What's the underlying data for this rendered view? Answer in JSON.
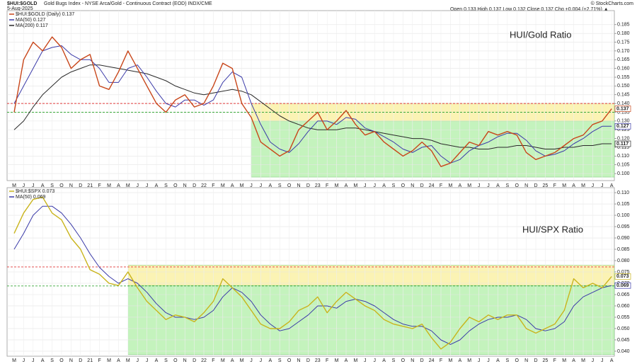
{
  "header": {
    "symbol": "$HUI:$GOLD",
    "description": "Gold Bugs Index - NYSE Arca/Gold - Continuous Contract (EOD) INDX/CME",
    "date": "5-Aug-2025",
    "quote": "Open 0.133  High 0.137  Low 0.132  Close 0.137  Chg +0.004 (+2.71%) ▲",
    "credit": "© StockCharts.com"
  },
  "chart_data": [
    {
      "type": "line",
      "annotation": "HUI/Gold Ratio",
      "categories": [
        "M",
        "J",
        "J",
        "A",
        "S",
        "O",
        "N",
        "D",
        "21",
        "F",
        "M",
        "A",
        "M",
        "J",
        "J",
        "A",
        "S",
        "O",
        "N",
        "D",
        "22",
        "F",
        "M",
        "A",
        "M",
        "J",
        "J",
        "A",
        "S",
        "O",
        "N",
        "D",
        "23",
        "F",
        "M",
        "A",
        "M",
        "J",
        "J",
        "A",
        "S",
        "O",
        "N",
        "D",
        "24",
        "F",
        "M",
        "A",
        "M",
        "J",
        "J",
        "A",
        "S",
        "O",
        "N",
        "D",
        "25",
        "F",
        "M",
        "A",
        "M",
        "J",
        "J",
        "A"
      ],
      "ylim": [
        0.096,
        0.193
      ],
      "yticks": [
        {
          "value": 0.1,
          "label": "0.100"
        },
        {
          "value": 0.105,
          "label": "0.105"
        },
        {
          "value": 0.11,
          "label": "0.110"
        },
        {
          "value": 0.115,
          "label": "0.115"
        },
        {
          "value": 0.12,
          "label": "0.120"
        },
        {
          "value": 0.125,
          "label": "0.125"
        },
        {
          "value": 0.13,
          "label": "0.130"
        },
        {
          "value": 0.135,
          "label": "0.135"
        },
        {
          "value": 0.14,
          "label": "0.140"
        },
        {
          "value": 0.145,
          "label": "0.145"
        },
        {
          "value": 0.15,
          "label": "0.150"
        },
        {
          "value": 0.155,
          "label": "0.155"
        },
        {
          "value": 0.16,
          "label": "0.160"
        },
        {
          "value": 0.165,
          "label": "0.165"
        },
        {
          "value": 0.17,
          "label": "0.170"
        },
        {
          "value": 0.175,
          "label": "0.175"
        },
        {
          "value": 0.18,
          "label": "0.180"
        },
        {
          "value": 0.185,
          "label": "0.185"
        }
      ],
      "grid": true,
      "zones": [
        {
          "from": 0.13,
          "to": 0.14,
          "color": "#fbf3b4",
          "start_category": 25
        },
        {
          "from": 0.098,
          "to": 0.13,
          "color": "#c4f3bd",
          "start_category": 25
        }
      ],
      "ref_lines": [
        {
          "value": 0.14,
          "color": "#e03a3a"
        },
        {
          "value": 0.135,
          "color": "#3aa83a"
        }
      ],
      "series": [
        {
          "name": "$HUI:$GOLD (Daily)",
          "color": "#c8461a",
          "width": 1.4,
          "last_value": 0.137,
          "values": [
            0.135,
            0.165,
            0.175,
            0.17,
            0.178,
            0.172,
            0.16,
            0.165,
            0.168,
            0.15,
            0.148,
            0.158,
            0.17,
            0.16,
            0.15,
            0.14,
            0.135,
            0.142,
            0.145,
            0.138,
            0.14,
            0.15,
            0.163,
            0.16,
            0.14,
            0.132,
            0.118,
            0.114,
            0.11,
            0.113,
            0.125,
            0.13,
            0.135,
            0.125,
            0.13,
            0.136,
            0.128,
            0.122,
            0.124,
            0.118,
            0.114,
            0.11,
            0.113,
            0.118,
            0.113,
            0.104,
            0.106,
            0.112,
            0.118,
            0.116,
            0.124,
            0.122,
            0.124,
            0.122,
            0.112,
            0.108,
            0.11,
            0.112,
            0.116,
            0.12,
            0.122,
            0.128,
            0.13,
            0.137
          ]
        },
        {
          "name": "MA(50)",
          "color": "#3a3aa8",
          "width": 1,
          "last_value": 0.127,
          "values": [
            0.14,
            0.15,
            0.16,
            0.17,
            0.172,
            0.173,
            0.168,
            0.165,
            0.165,
            0.16,
            0.152,
            0.152,
            0.16,
            0.162,
            0.155,
            0.147,
            0.14,
            0.138,
            0.142,
            0.142,
            0.139,
            0.142,
            0.152,
            0.158,
            0.155,
            0.14,
            0.128,
            0.118,
            0.114,
            0.112,
            0.117,
            0.124,
            0.13,
            0.13,
            0.128,
            0.132,
            0.131,
            0.126,
            0.124,
            0.121,
            0.118,
            0.114,
            0.112,
            0.115,
            0.116,
            0.11,
            0.106,
            0.108,
            0.113,
            0.116,
            0.118,
            0.121,
            0.123,
            0.123,
            0.119,
            0.113,
            0.11,
            0.111,
            0.113,
            0.117,
            0.12,
            0.124,
            0.127,
            0.127
          ]
        },
        {
          "name": "MA(200)",
          "color": "#2a2a2a",
          "width": 1,
          "last_value": 0.117,
          "values": [
            0.125,
            0.13,
            0.138,
            0.145,
            0.15,
            0.155,
            0.158,
            0.16,
            0.162,
            0.162,
            0.161,
            0.16,
            0.159,
            0.158,
            0.157,
            0.155,
            0.153,
            0.15,
            0.148,
            0.146,
            0.145,
            0.146,
            0.147,
            0.148,
            0.147,
            0.145,
            0.141,
            0.137,
            0.133,
            0.13,
            0.128,
            0.126,
            0.125,
            0.125,
            0.125,
            0.126,
            0.126,
            0.125,
            0.124,
            0.123,
            0.122,
            0.121,
            0.12,
            0.12,
            0.119,
            0.117,
            0.116,
            0.115,
            0.115,
            0.114,
            0.114,
            0.115,
            0.115,
            0.116,
            0.116,
            0.115,
            0.114,
            0.114,
            0.115,
            0.115,
            0.116,
            0.116,
            0.117,
            0.117
          ]
        }
      ]
    },
    {
      "type": "line",
      "annotation": "HUI/SPX Ratio",
      "categories": [
        "M",
        "J",
        "J",
        "A",
        "S",
        "O",
        "N",
        "D",
        "21",
        "F",
        "M",
        "A",
        "M",
        "J",
        "J",
        "A",
        "S",
        "O",
        "N",
        "D",
        "22",
        "F",
        "M",
        "A",
        "M",
        "J",
        "J",
        "A",
        "S",
        "O",
        "N",
        "D",
        "23",
        "F",
        "M",
        "A",
        "M",
        "J",
        "J",
        "A",
        "S",
        "O",
        "N",
        "D",
        "24",
        "F",
        "M",
        "A",
        "M",
        "J",
        "J",
        "A",
        "S",
        "O",
        "N",
        "D",
        "25",
        "F",
        "M",
        "A",
        "M",
        "J",
        "J",
        "A"
      ],
      "ylim": [
        0.0378,
        0.1122
      ],
      "yticks": [
        {
          "value": 0.04,
          "label": "0.040"
        },
        {
          "value": 0.045,
          "label": "0.045"
        },
        {
          "value": 0.05,
          "label": "0.050"
        },
        {
          "value": 0.055,
          "label": "0.055"
        },
        {
          "value": 0.06,
          "label": "0.060"
        },
        {
          "value": 0.065,
          "label": "0.065"
        },
        {
          "value": 0.07,
          "label": "0.070"
        },
        {
          "value": 0.075,
          "label": "0.075"
        },
        {
          "value": 0.08,
          "label": "0.080"
        },
        {
          "value": 0.085,
          "label": "0.085"
        },
        {
          "value": 0.09,
          "label": "0.090"
        },
        {
          "value": 0.095,
          "label": "0.095"
        },
        {
          "value": 0.1,
          "label": "0.100"
        },
        {
          "value": 0.105,
          "label": "0.105"
        },
        {
          "value": 0.11,
          "label": "0.110"
        }
      ],
      "grid": true,
      "zones": [
        {
          "from": 0.069,
          "to": 0.078,
          "color": "#fbf3b4",
          "start_category": 12
        },
        {
          "from": 0.0385,
          "to": 0.069,
          "color": "#c4f3bd",
          "start_category": 12
        }
      ],
      "ref_lines": [
        {
          "value": 0.0772,
          "color": "#e03a3a"
        },
        {
          "value": 0.0688,
          "color": "#3aa83a"
        }
      ],
      "series": [
        {
          "name": "$HUI:$SPX",
          "color": "#c9b41c",
          "width": 1.4,
          "last_value": 0.073,
          "values": [
            0.092,
            0.101,
            0.107,
            0.108,
            0.101,
            0.098,
            0.09,
            0.085,
            0.076,
            0.074,
            0.07,
            0.069,
            0.075,
            0.068,
            0.062,
            0.058,
            0.054,
            0.056,
            0.055,
            0.053,
            0.057,
            0.062,
            0.072,
            0.068,
            0.064,
            0.058,
            0.052,
            0.05,
            0.05,
            0.053,
            0.058,
            0.06,
            0.064,
            0.057,
            0.062,
            0.066,
            0.063,
            0.06,
            0.058,
            0.054,
            0.052,
            0.051,
            0.05,
            0.052,
            0.046,
            0.041,
            0.044,
            0.05,
            0.055,
            0.053,
            0.056,
            0.054,
            0.056,
            0.056,
            0.05,
            0.048,
            0.05,
            0.052,
            0.058,
            0.072,
            0.068,
            0.07,
            0.068,
            0.073
          ]
        },
        {
          "name": "MA(50)",
          "color": "#3a3aa8",
          "width": 1,
          "last_value": 0.069,
          "values": [
            0.085,
            0.092,
            0.1,
            0.104,
            0.104,
            0.101,
            0.096,
            0.09,
            0.083,
            0.077,
            0.073,
            0.07,
            0.072,
            0.07,
            0.066,
            0.061,
            0.057,
            0.055,
            0.055,
            0.054,
            0.055,
            0.058,
            0.064,
            0.068,
            0.066,
            0.062,
            0.056,
            0.052,
            0.049,
            0.05,
            0.053,
            0.056,
            0.06,
            0.06,
            0.059,
            0.062,
            0.063,
            0.062,
            0.06,
            0.057,
            0.054,
            0.052,
            0.051,
            0.051,
            0.049,
            0.045,
            0.043,
            0.045,
            0.049,
            0.052,
            0.054,
            0.055,
            0.055,
            0.056,
            0.054,
            0.05,
            0.049,
            0.05,
            0.053,
            0.06,
            0.064,
            0.066,
            0.068,
            0.069
          ]
        }
      ]
    }
  ]
}
